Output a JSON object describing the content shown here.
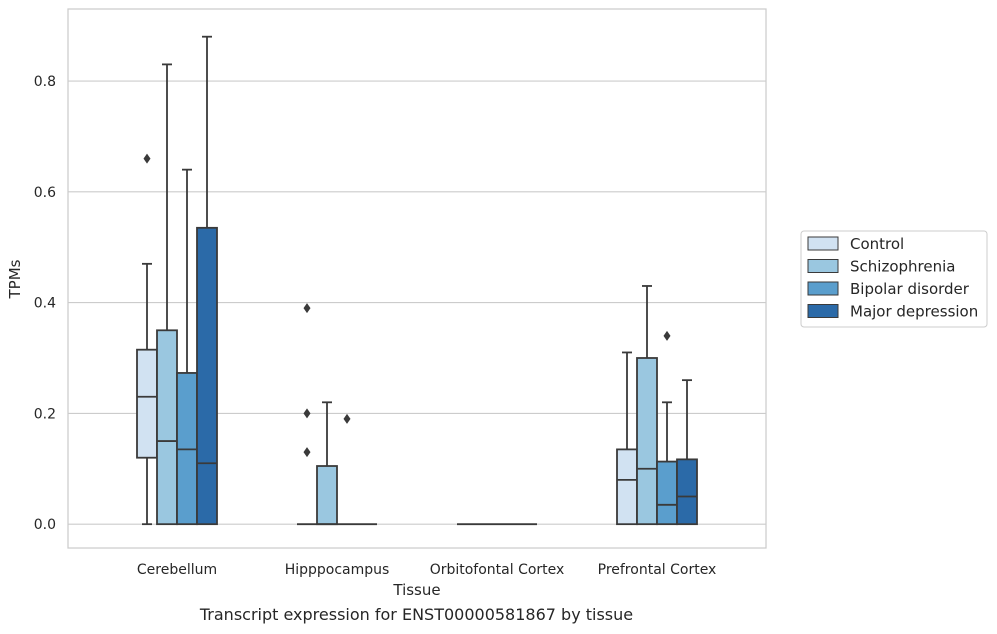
{
  "caption": "Transcript expression for ENST00000581867 by tissue",
  "chart_data": {
    "type": "box",
    "title": "",
    "xlabel": "Tissue",
    "ylabel": "TPMs",
    "ylim": [
      -0.043,
      0.93
    ],
    "yticks": [
      0.0,
      0.2,
      0.4,
      0.6,
      0.8
    ],
    "ytick_labels": [
      "0.0",
      "0.2",
      "0.4",
      "0.6",
      "0.8"
    ],
    "grid": "horizontal",
    "legend_position": "right",
    "categories": [
      "Cerebellum",
      "Hipppocampus",
      "Orbitofontal Cortex",
      "Prefrontal Cortex"
    ],
    "series": [
      {
        "name": "Control",
        "color": "#d1e2f2",
        "boxes": [
          {
            "whislo": 0.0,
            "q1": 0.12,
            "med": 0.23,
            "q3": 0.315,
            "whishi": 0.47,
            "fliers": [
              0.66
            ]
          },
          {
            "whislo": 0.0,
            "q1": 0.0,
            "med": 0.0,
            "q3": 0.0,
            "whishi": 0.0,
            "fliers": [
              0.13,
              0.2,
              0.39
            ]
          },
          {
            "whislo": 0.0,
            "q1": 0.0,
            "med": 0.0,
            "q3": 0.0,
            "whishi": 0.0,
            "fliers": []
          },
          {
            "whislo": 0.0,
            "q1": 0.0,
            "med": 0.08,
            "q3": 0.135,
            "whishi": 0.31,
            "fliers": []
          }
        ]
      },
      {
        "name": "Schizophrenia",
        "color": "#9ac7e0",
        "boxes": [
          {
            "whislo": 0.0,
            "q1": 0.0,
            "med": 0.15,
            "q3": 0.35,
            "whishi": 0.83,
            "fliers": []
          },
          {
            "whislo": 0.0,
            "q1": 0.0,
            "med": 0.0,
            "q3": 0.105,
            "whishi": 0.22,
            "fliers": []
          },
          {
            "whislo": 0.0,
            "q1": 0.0,
            "med": 0.0,
            "q3": 0.0,
            "whishi": 0.0,
            "fliers": []
          },
          {
            "whislo": 0.0,
            "q1": 0.0,
            "med": 0.1,
            "q3": 0.3,
            "whishi": 0.43,
            "fliers": []
          }
        ]
      },
      {
        "name": "Bipolar disorder",
        "color": "#5a9ecd",
        "boxes": [
          {
            "whislo": 0.0,
            "q1": 0.0,
            "med": 0.135,
            "q3": 0.273,
            "whishi": 0.64,
            "fliers": []
          },
          {
            "whislo": 0.0,
            "q1": 0.0,
            "med": 0.0,
            "q3": 0.0,
            "whishi": 0.0,
            "fliers": [
              0.19
            ]
          },
          {
            "whislo": 0.0,
            "q1": 0.0,
            "med": 0.0,
            "q3": 0.0,
            "whishi": 0.0,
            "fliers": []
          },
          {
            "whislo": 0.0,
            "q1": 0.0,
            "med": 0.035,
            "q3": 0.113,
            "whishi": 0.22,
            "fliers": [
              0.34
            ]
          }
        ]
      },
      {
        "name": "Major depression",
        "color": "#2b6aa8",
        "boxes": [
          {
            "whislo": 0.0,
            "q1": 0.0,
            "med": 0.11,
            "q3": 0.535,
            "whishi": 0.88,
            "fliers": []
          },
          {
            "whislo": 0.0,
            "q1": 0.0,
            "med": 0.0,
            "q3": 0.0,
            "whishi": 0.0,
            "fliers": []
          },
          {
            "whislo": 0.0,
            "q1": 0.0,
            "med": 0.0,
            "q3": 0.0,
            "whishi": 0.0,
            "fliers": []
          },
          {
            "whislo": 0.0,
            "q1": 0.0,
            "med": 0.05,
            "q3": 0.117,
            "whishi": 0.26,
            "fliers": []
          }
        ]
      }
    ]
  }
}
